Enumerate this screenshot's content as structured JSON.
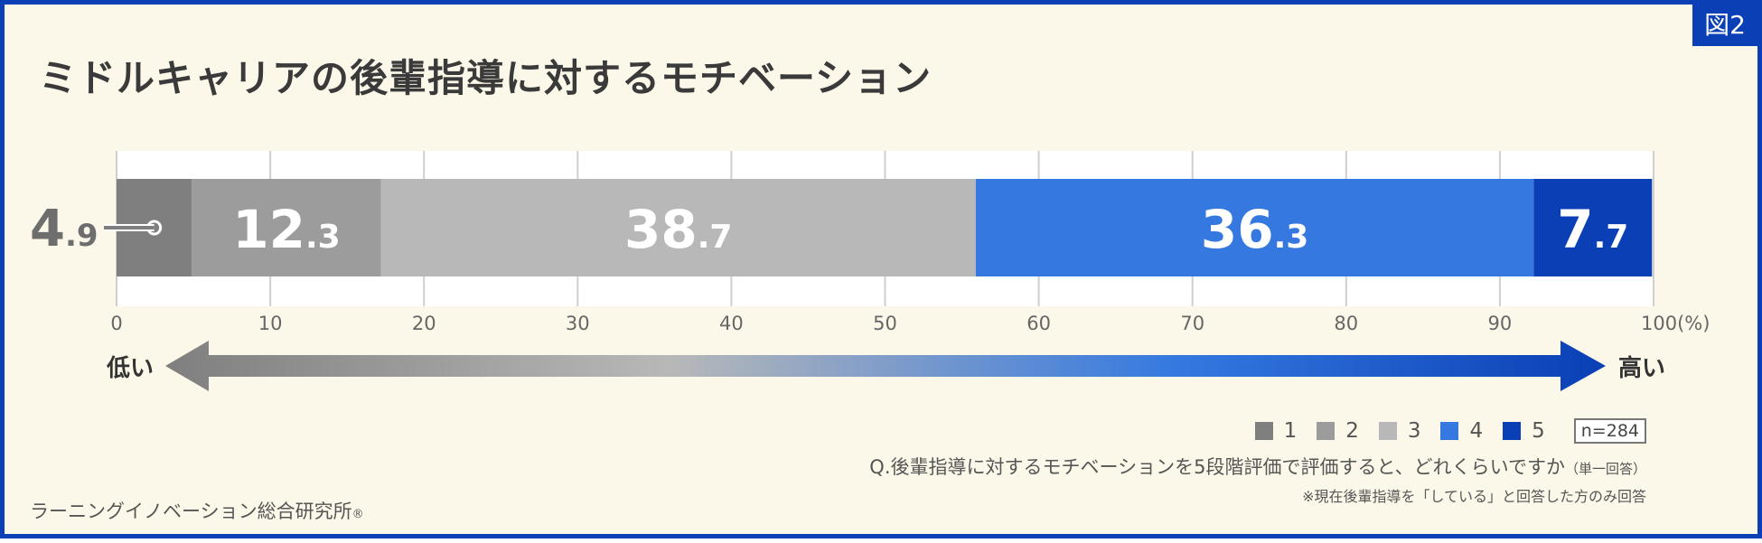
{
  "figure_label": "図2",
  "chart_data": {
    "type": "bar",
    "orientation": "horizontal-stacked",
    "title": "ミドルキャリアの後輩指導に対するモチベーション",
    "categories": [
      "1",
      "2",
      "3",
      "4",
      "5"
    ],
    "values": [
      4.9,
      12.3,
      38.7,
      36.3,
      7.7
    ],
    "value_labels": [
      {
        "int": "4",
        "dec": ".9"
      },
      {
        "int": "12",
        "dec": ".3"
      },
      {
        "int": "38",
        "dec": ".7"
      },
      {
        "int": "36",
        "dec": ".3"
      },
      {
        "int": "7",
        "dec": ".7"
      }
    ],
    "colors": [
      "#7f7f7f",
      "#9c9c9c",
      "#b8b8b8",
      "#3579e0",
      "#0a3fb5"
    ],
    "xlim": [
      0,
      100
    ],
    "xticks": [
      "0",
      "10",
      "20",
      "30",
      "40",
      "50",
      "60",
      "70",
      "80",
      "90",
      "100(%)"
    ],
    "grid": true,
    "legend_position": "bottom-right"
  },
  "scale": {
    "low": "低い",
    "high": "高い"
  },
  "sample": "n=284",
  "question": "Q.後輩指導に対するモチベーションを5段階評価で評価すると、どれくらいですか",
  "question_note": "（単一回答）",
  "footnote": "※現在後輩指導を「している」と回答した方のみ回答",
  "source": "ラーニングイノベーション総合研究所",
  "source_mark": "®"
}
